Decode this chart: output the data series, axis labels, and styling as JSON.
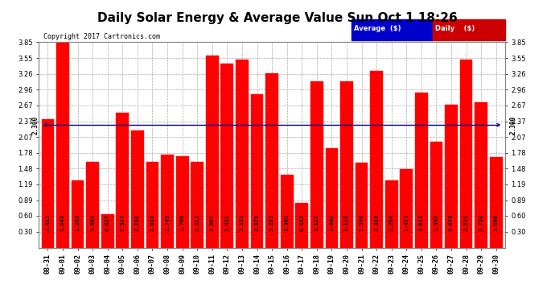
{
  "title": "Daily Solar Energy & Average Value Sun Oct 1 18:26",
  "copyright": "Copyright 2017 Cartronics.com",
  "categories": [
    "08-31",
    "09-01",
    "09-02",
    "09-03",
    "09-04",
    "09-05",
    "09-06",
    "09-07",
    "09-08",
    "09-09",
    "09-10",
    "09-11",
    "09-12",
    "09-13",
    "09-14",
    "09-15",
    "09-16",
    "09-17",
    "09-18",
    "09-19",
    "09-20",
    "09-21",
    "09-22",
    "09-23",
    "09-24",
    "09-25",
    "09-26",
    "09-27",
    "09-28",
    "09-29",
    "09-30"
  ],
  "values": [
    2.413,
    3.848,
    1.263,
    1.602,
    0.627,
    2.527,
    2.192,
    1.61,
    1.745,
    1.709,
    1.613,
    3.607,
    3.451,
    3.523,
    2.879,
    3.263,
    1.362,
    0.843,
    3.122,
    1.862,
    3.118,
    1.598,
    3.316,
    1.264,
    1.473,
    2.912,
    1.992,
    2.678,
    3.519,
    2.72,
    1.698
  ],
  "average": 2.3,
  "bar_color": "#ff0000",
  "average_line_color": "#000080",
  "background_color": "#ffffff",
  "grid_color": "#aaaaaa",
  "ylim": [
    0.0,
    3.85
  ],
  "yticks": [
    0.3,
    0.6,
    0.89,
    1.19,
    1.48,
    1.78,
    2.07,
    2.37,
    2.67,
    2.96,
    3.26,
    3.55,
    3.85
  ],
  "legend_avg_bg": "#0000cc",
  "legend_daily_bg": "#cc0000",
  "avg_label": "2.300",
  "title_fontsize": 11,
  "tick_fontsize": 6,
  "bar_label_fontsize": 5,
  "copyright_fontsize": 6
}
